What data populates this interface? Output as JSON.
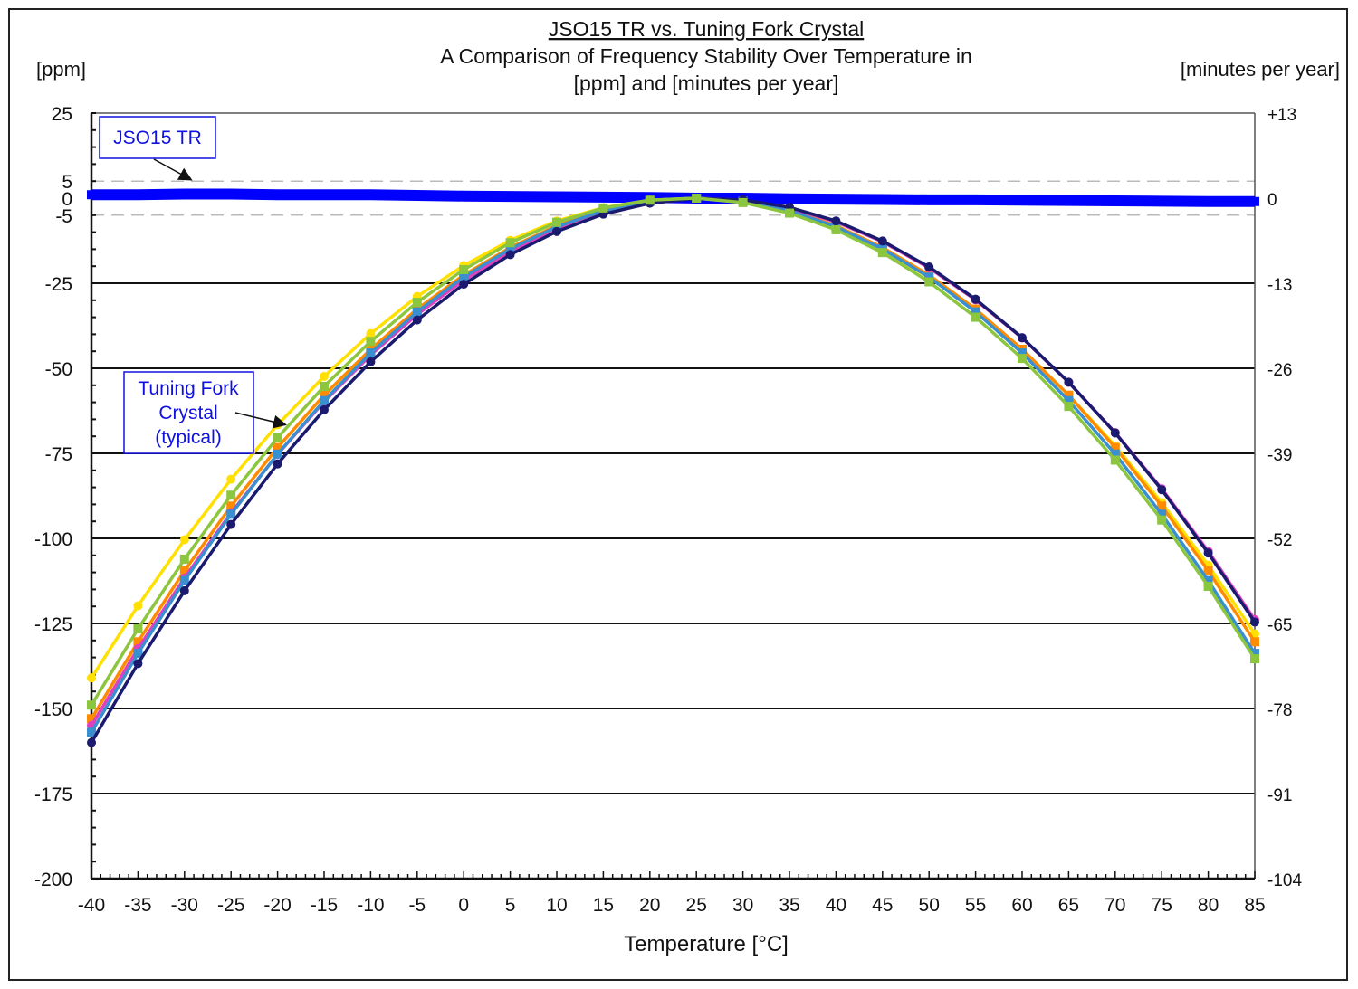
{
  "chart_data": {
    "type": "line",
    "title": "JSO15 TR vs. Tuning Fork Crystal",
    "subtitle_lines": [
      "A Comparison of Frequency Stability Over Temperature in",
      "[ppm] and [minutes per year]"
    ],
    "xlabel": "Temperature [°C]",
    "ylabel": "[ppm]",
    "ylabel_right": "[minutes per year]",
    "xlim": [
      -40,
      85
    ],
    "ylim": [
      -200,
      25
    ],
    "x": [
      -40,
      -35,
      -30,
      -25,
      -20,
      -15,
      -10,
      -5,
      0,
      5,
      10,
      15,
      20,
      25,
      30,
      35,
      40,
      45,
      50,
      55,
      60,
      65,
      70,
      75,
      80,
      85
    ],
    "y_ticks": [
      25,
      5,
      0,
      -5,
      -25,
      -50,
      -75,
      -100,
      -125,
      -150,
      -175,
      -200
    ],
    "y_tick_labels": [
      "25",
      "5",
      "0",
      "-5",
      "-25",
      "-50",
      "-75",
      "-100",
      "-125",
      "-150",
      "-175",
      "-200"
    ],
    "y_right_ticks": [
      25,
      0,
      -25,
      -50,
      -75,
      -100,
      -125,
      -150,
      -175,
      -200
    ],
    "y_right_tick_labels": [
      "+13",
      "0",
      "-13",
      "-26",
      "-39",
      "-52",
      "-65",
      "-78",
      "-91",
      "-104"
    ],
    "grid": {
      "solid_at": [
        -25,
        -50,
        -75,
        -100,
        -125,
        -150,
        -175
      ],
      "dashed_at": [
        5,
        -5
      ]
    },
    "annotations": [
      {
        "text": "JSO15 TR",
        "color": "#1010e0"
      },
      {
        "text_lines": [
          "Tuning Fork",
          "Crystal",
          "(typical)"
        ],
        "color": "#1010e0"
      }
    ],
    "series": [
      {
        "color": "#0000ff",
        "values": [
          1,
          1,
          1.2,
          1.2,
          1,
          1,
          1,
          0.8,
          0.6,
          0.5,
          0.4,
          0.3,
          0.2,
          0,
          0,
          -0.2,
          -0.3,
          -0.4,
          -0.5,
          -0.5,
          -0.6,
          -0.7,
          -0.8,
          -0.9,
          -1,
          -1
        ]
      },
      {
        "color": "#ffe000",
        "values": [
          -141,
          -119.8,
          -100.4,
          -82.6,
          -66.6,
          -52.4,
          -39.8,
          -28.9,
          -19.8,
          -12.4,
          -6.7,
          -2.8,
          -0.6,
          0,
          -1.2,
          -4.2,
          -8.8,
          -15.2,
          -23.3,
          -33.1,
          -44.6,
          -57.9,
          -72.8,
          -89.5,
          -107.9,
          -128.1
        ]
      },
      {
        "color": "#ff8c00",
        "values": [
          -153,
          -130.4,
          -109.5,
          -90.5,
          -73.3,
          -57.9,
          -44.4,
          -32.6,
          -22.6,
          -14.5,
          -8.1,
          -3.6,
          -0.9,
          0,
          -0.9,
          -3.6,
          -8.1,
          -14.5,
          -22.6,
          -32.6,
          -44.4,
          -57.9,
          -73.3,
          -90.5,
          -109.5,
          -130.4
        ]
      },
      {
        "color": "#e040c0",
        "values": [
          -155,
          -132.4,
          -111.6,
          -92.5,
          -75.3,
          -59.8,
          -46.1,
          -34.2,
          -24.1,
          -15.7,
          -9.1,
          -4.3,
          -1.3,
          0,
          -0.6,
          -2.9,
          -7,
          -12.8,
          -20.5,
          -29.9,
          -41.1,
          -54.1,
          -68.9,
          -85.4,
          -103.8,
          -123.9
        ]
      },
      {
        "color": "#3a8fd0",
        "values": [
          -157,
          -133.8,
          -112.4,
          -92.9,
          -75.2,
          -59.5,
          -45.5,
          -33.4,
          -23.2,
          -14.9,
          -8.4,
          -3.7,
          -0.9,
          0,
          -0.9,
          -3.7,
          -8.4,
          -14.9,
          -23.2,
          -33.4,
          -45.5,
          -59.5,
          -75.2,
          -92.9,
          -112.4,
          -133.8
        ]
      },
      {
        "color": "#1a1a6e",
        "values": [
          -160,
          -136.8,
          -115.4,
          -95.9,
          -78.1,
          -62.2,
          -48.1,
          -35.8,
          -25.3,
          -16.6,
          -9.8,
          -4.7,
          -1.5,
          -0.1,
          -0.5,
          -2.7,
          -6.7,
          -12.6,
          -20.2,
          -29.7,
          -41,
          -54.1,
          -69,
          -85.7,
          -104.3,
          -124.6
        ]
      },
      {
        "color": "#8cc63f",
        "values": [
          -149,
          -126.6,
          -106.1,
          -87.3,
          -70.4,
          -55.3,
          -42.1,
          -30.6,
          -21,
          -13.1,
          -7.1,
          -2.9,
          -0.6,
          0,
          -1.3,
          -4.4,
          -9.3,
          -16,
          -24.6,
          -35,
          -47.1,
          -61.2,
          -77,
          -94.6,
          -114.1,
          -135.4
        ]
      }
    ]
  }
}
